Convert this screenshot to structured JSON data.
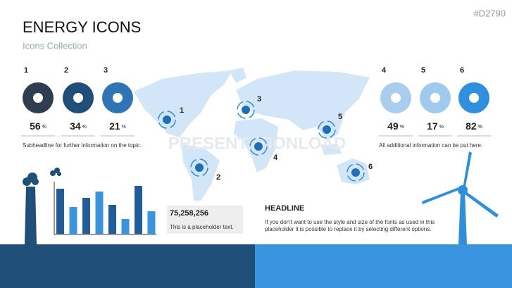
{
  "tag": "#D2790",
  "title": "ENERGY ICONS",
  "subtitle": "Icons Collection",
  "items": [
    {
      "number": "1",
      "value": "56",
      "unit": "%"
    },
    {
      "number": "2",
      "value": "34",
      "unit": "%"
    },
    {
      "number": "3",
      "value": "21",
      "unit": "%"
    },
    {
      "number": "4",
      "value": "49",
      "unit": "%"
    },
    {
      "number": "5",
      "value": "17",
      "unit": "%"
    },
    {
      "number": "6",
      "value": "82",
      "unit": "%"
    }
  ],
  "left_note": "Subheadline for further information on the topic.",
  "right_note": "All additional information can be put here.",
  "watermark": "PRESENTATIONLOAD",
  "map_markers": [
    "1",
    "2",
    "3",
    "4",
    "5",
    "6"
  ],
  "stat": {
    "value": "75,258,256",
    "caption": "This is a placeholder text."
  },
  "headline": "HEADLINE",
  "body": "If you don't want to use the style and size of the fonts as used in this placeholder it is possible to replace it by selecting different options.",
  "bar_chart": {
    "values": [
      64,
      38,
      51,
      60,
      41,
      21,
      68,
      32
    ]
  }
}
